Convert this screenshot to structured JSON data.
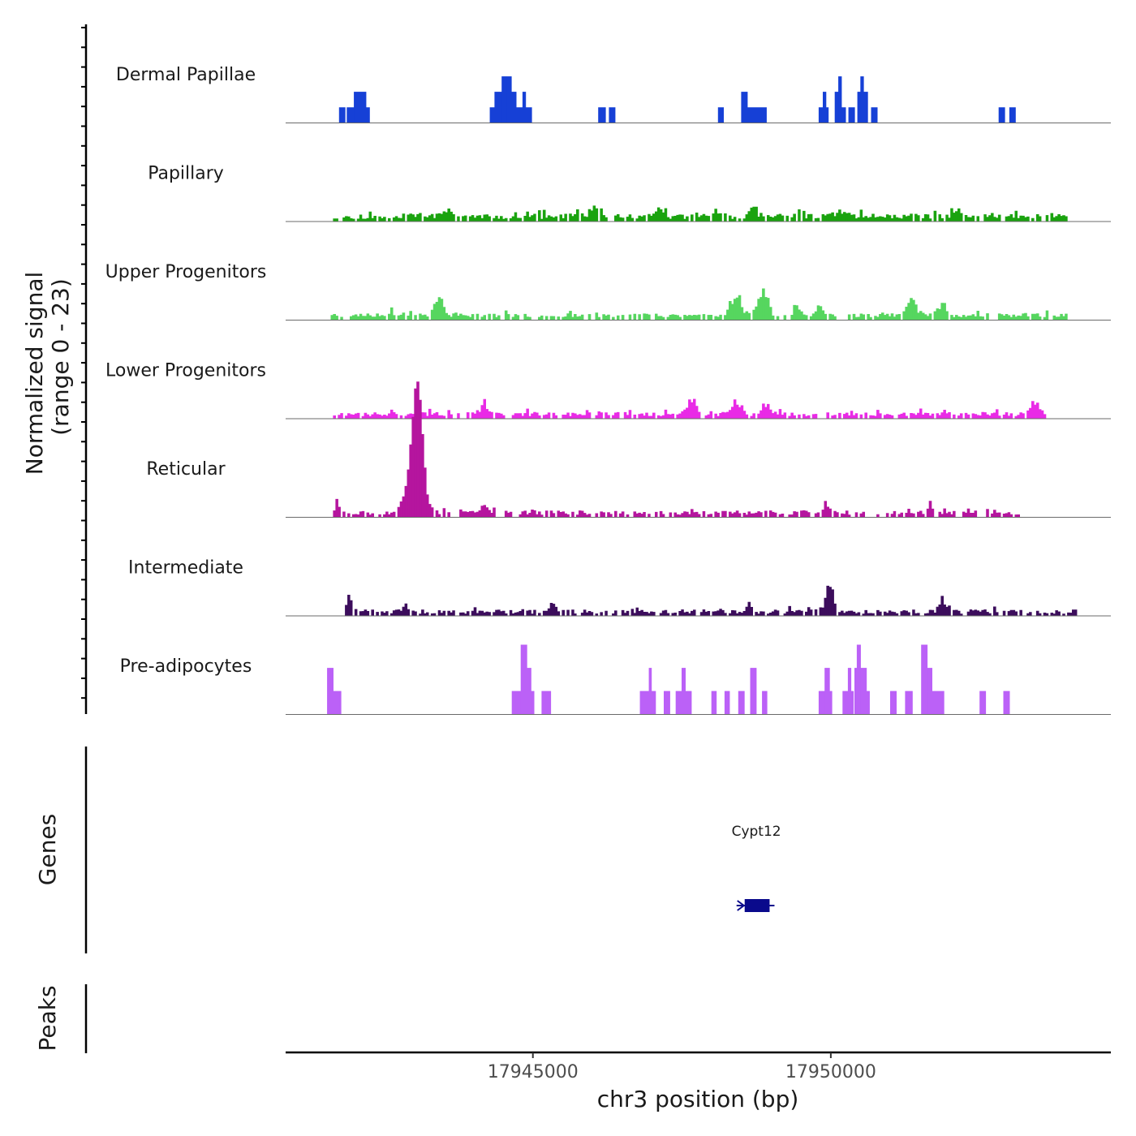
{
  "chart_data": {
    "type": "area",
    "title": "",
    "ylabel": "Normalized signal",
    "ylabel_range": "(range 0 - 23)",
    "xlabel": "chr3 position (bp)",
    "xlim": [
      17940850,
      17954700
    ],
    "ylim": [
      0,
      23
    ],
    "x_ticks": [
      {
        "value": 17945000,
        "label": "17945000"
      },
      {
        "value": 17950000,
        "label": "17950000"
      }
    ],
    "tracks": [
      {
        "name": "Dermal Papillae",
        "color": "#1640d6",
        "segments": [
          {
            "s": 17941750,
            "e": 17941850,
            "v": 4
          },
          {
            "s": 17941880,
            "e": 17942000,
            "v": 4
          },
          {
            "s": 17942000,
            "e": 17942080,
            "v": 8
          },
          {
            "s": 17942080,
            "e": 17942200,
            "v": 8
          },
          {
            "s": 17942200,
            "e": 17942260,
            "v": 4
          },
          {
            "s": 17944280,
            "e": 17944360,
            "v": 4
          },
          {
            "s": 17944360,
            "e": 17944480,
            "v": 8
          },
          {
            "s": 17944480,
            "e": 17944560,
            "v": 12
          },
          {
            "s": 17944560,
            "e": 17944640,
            "v": 12
          },
          {
            "s": 17944640,
            "e": 17944720,
            "v": 8
          },
          {
            "s": 17944720,
            "e": 17944830,
            "v": 4
          },
          {
            "s": 17944830,
            "e": 17944880,
            "v": 8
          },
          {
            "s": 17944880,
            "e": 17944980,
            "v": 4
          },
          {
            "s": 17946100,
            "e": 17946220,
            "v": 4
          },
          {
            "s": 17946280,
            "e": 17946380,
            "v": 4
          },
          {
            "s": 17948110,
            "e": 17948200,
            "v": 4
          },
          {
            "s": 17948500,
            "e": 17948600,
            "v": 8
          },
          {
            "s": 17948600,
            "e": 17948920,
            "v": 4
          },
          {
            "s": 17949800,
            "e": 17949870,
            "v": 4
          },
          {
            "s": 17949870,
            "e": 17949920,
            "v": 8
          },
          {
            "s": 17949920,
            "e": 17949960,
            "v": 4
          },
          {
            "s": 17950070,
            "e": 17950130,
            "v": 8
          },
          {
            "s": 17950130,
            "e": 17950180,
            "v": 12
          },
          {
            "s": 17950180,
            "e": 17950250,
            "v": 4
          },
          {
            "s": 17950300,
            "e": 17950400,
            "v": 4
          },
          {
            "s": 17950450,
            "e": 17950500,
            "v": 8
          },
          {
            "s": 17950500,
            "e": 17950550,
            "v": 12
          },
          {
            "s": 17950550,
            "e": 17950620,
            "v": 8
          },
          {
            "s": 17950680,
            "e": 17950780,
            "v": 4
          },
          {
            "s": 17952820,
            "e": 17952920,
            "v": 4
          },
          {
            "s": 17953000,
            "e": 17953100,
            "v": 4
          }
        ]
      },
      {
        "name": "Papillary",
        "color": "#1aa30f",
        "baseline": 0.6,
        "noise": 1.4,
        "seed": 11,
        "peaks": [
          {
            "x": 17943500,
            "h": 2.6,
            "w": 90
          },
          {
            "x": 17946000,
            "h": 3.2,
            "w": 80
          },
          {
            "x": 17947100,
            "h": 2.4,
            "w": 80
          },
          {
            "x": 17948050,
            "h": 2.6,
            "w": 80
          },
          {
            "x": 17948700,
            "h": 2.2,
            "w": 90
          },
          {
            "x": 17950180,
            "h": 2.0,
            "w": 70
          },
          {
            "x": 17952100,
            "h": 1.8,
            "w": 70
          }
        ],
        "gaps": [
          {
            "s": 17940850,
            "e": 17941550
          },
          {
            "s": 17953950,
            "e": 17954700
          }
        ]
      },
      {
        "name": "Upper Progenitors",
        "color": "#56d65f",
        "baseline": 0.7,
        "noise": 1.0,
        "seed": 23,
        "peaks": [
          {
            "x": 17943400,
            "h": 5.2,
            "w": 90
          },
          {
            "x": 17948400,
            "h": 5.8,
            "w": 120
          },
          {
            "x": 17948850,
            "h": 6.6,
            "w": 120
          },
          {
            "x": 17949400,
            "h": 2.8,
            "w": 80
          },
          {
            "x": 17949800,
            "h": 2.6,
            "w": 70
          },
          {
            "x": 17951350,
            "h": 4.2,
            "w": 110
          },
          {
            "x": 17951850,
            "h": 3.4,
            "w": 90
          },
          {
            "x": 17942600,
            "h": 1.8,
            "w": 80
          }
        ],
        "gaps": [
          {
            "s": 17940850,
            "e": 17941550
          },
          {
            "s": 17953950,
            "e": 17954700
          }
        ]
      },
      {
        "name": "Lower Progenitors",
        "color": "#e92ae6",
        "baseline": 0.6,
        "noise": 1.1,
        "seed": 37,
        "peaks": [
          {
            "x": 17944150,
            "h": 3.0,
            "w": 80
          },
          {
            "x": 17947650,
            "h": 4.2,
            "w": 90
          },
          {
            "x": 17948400,
            "h": 3.6,
            "w": 110
          },
          {
            "x": 17948900,
            "h": 3.0,
            "w": 90
          },
          {
            "x": 17953400,
            "h": 3.6,
            "w": 90
          }
        ],
        "gaps": [
          {
            "s": 17940850,
            "e": 17941600
          },
          {
            "s": 17953600,
            "e": 17954700
          }
        ]
      },
      {
        "name": "Reticular",
        "color": "#b5159e",
        "baseline": 0.6,
        "noise": 1.1,
        "seed": 53,
        "peaks": [
          {
            "x": 17943050,
            "h": 23,
            "w": 110
          },
          {
            "x": 17943000,
            "h": 12,
            "w": 180
          },
          {
            "x": 17941700,
            "h": 3.4,
            "w": 60
          },
          {
            "x": 17949900,
            "h": 3.2,
            "w": 70
          },
          {
            "x": 17951650,
            "h": 3.0,
            "w": 70
          },
          {
            "x": 17944150,
            "h": 2.4,
            "w": 60
          }
        ],
        "gaps": [
          {
            "s": 17940850,
            "e": 17941550
          },
          {
            "s": 17953150,
            "e": 17954700
          }
        ]
      },
      {
        "name": "Intermediate",
        "color": "#3c0d5c",
        "baseline": 0.5,
        "noise": 1.1,
        "seed": 71,
        "peaks": [
          {
            "x": 17949950,
            "h": 7.2,
            "w": 90
          },
          {
            "x": 17951850,
            "h": 4.0,
            "w": 70
          },
          {
            "x": 17941900,
            "h": 3.6,
            "w": 60
          },
          {
            "x": 17942850,
            "h": 2.6,
            "w": 60
          },
          {
            "x": 17945300,
            "h": 2.4,
            "w": 60
          },
          {
            "x": 17948600,
            "h": 2.2,
            "w": 60
          }
        ],
        "gaps": [
          {
            "s": 17940850,
            "e": 17941800
          },
          {
            "s": 17954100,
            "e": 17954700
          }
        ]
      },
      {
        "name": "Pre-adipocytes",
        "color": "#bb61f7",
        "segments": [
          {
            "s": 17941550,
            "e": 17941650,
            "v": 12
          },
          {
            "s": 17941650,
            "e": 17941780,
            "v": 6
          },
          {
            "s": 17944650,
            "e": 17944800,
            "v": 6
          },
          {
            "s": 17944800,
            "e": 17944900,
            "v": 18
          },
          {
            "s": 17944900,
            "e": 17944970,
            "v": 12
          },
          {
            "s": 17944970,
            "e": 17945020,
            "v": 6
          },
          {
            "s": 17945150,
            "e": 17945300,
            "v": 6
          },
          {
            "s": 17946800,
            "e": 17946950,
            "v": 6
          },
          {
            "s": 17946950,
            "e": 17946990,
            "v": 12
          },
          {
            "s": 17946990,
            "e": 17947060,
            "v": 6
          },
          {
            "s": 17947200,
            "e": 17947300,
            "v": 6
          },
          {
            "s": 17947400,
            "e": 17947500,
            "v": 6
          },
          {
            "s": 17947500,
            "e": 17947560,
            "v": 12
          },
          {
            "s": 17947560,
            "e": 17947660,
            "v": 6
          },
          {
            "s": 17948000,
            "e": 17948080,
            "v": 6
          },
          {
            "s": 17948220,
            "e": 17948300,
            "v": 6
          },
          {
            "s": 17948450,
            "e": 17948550,
            "v": 6
          },
          {
            "s": 17948650,
            "e": 17948750,
            "v": 12
          },
          {
            "s": 17948850,
            "e": 17948930,
            "v": 6
          },
          {
            "s": 17949800,
            "e": 17949900,
            "v": 6
          },
          {
            "s": 17949900,
            "e": 17949980,
            "v": 12
          },
          {
            "s": 17949980,
            "e": 17950020,
            "v": 6
          },
          {
            "s": 17950200,
            "e": 17950290,
            "v": 6
          },
          {
            "s": 17950290,
            "e": 17950340,
            "v": 12
          },
          {
            "s": 17950340,
            "e": 17950380,
            "v": 6
          },
          {
            "s": 17950400,
            "e": 17950440,
            "v": 12
          },
          {
            "s": 17950440,
            "e": 17950500,
            "v": 18
          },
          {
            "s": 17950500,
            "e": 17950600,
            "v": 12
          },
          {
            "s": 17950600,
            "e": 17950650,
            "v": 6
          },
          {
            "s": 17951000,
            "e": 17951100,
            "v": 6
          },
          {
            "s": 17951250,
            "e": 17951370,
            "v": 6
          },
          {
            "s": 17951520,
            "e": 17951620,
            "v": 18
          },
          {
            "s": 17951620,
            "e": 17951700,
            "v": 12
          },
          {
            "s": 17951700,
            "e": 17951770,
            "v": 6
          },
          {
            "s": 17951770,
            "e": 17951900,
            "v": 6
          },
          {
            "s": 17952500,
            "e": 17952600,
            "v": 6
          },
          {
            "s": 17952900,
            "e": 17953000,
            "v": 6
          }
        ]
      }
    ],
    "genes": [
      {
        "name": "Cypt12",
        "start": 17948500,
        "end": 17949000,
        "strand": "-",
        "color": "#0a0a8c"
      }
    ],
    "panels": {
      "genes": "Genes",
      "peaks": "Peaks"
    },
    "peaks": []
  }
}
